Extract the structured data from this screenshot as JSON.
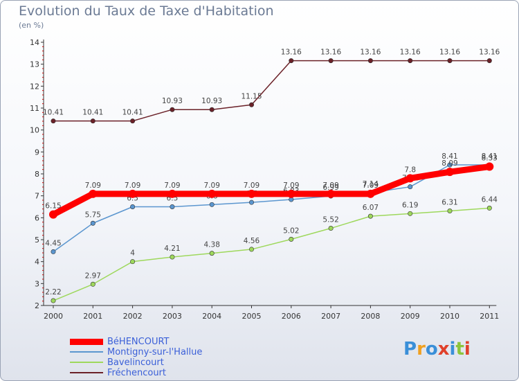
{
  "title": "Evolution du Taux de Taxe d'Habitation",
  "unit_label": "(en %)",
  "logo": "Proxiti",
  "chart_data": {
    "type": "line",
    "x": [
      "2000",
      "2001",
      "2002",
      "2003",
      "2004",
      "2005",
      "2006",
      "2007",
      "2008",
      "2009",
      "2010",
      "2011"
    ],
    "ylim": [
      2,
      14
    ],
    "yticks": [
      2,
      3,
      4,
      5,
      6,
      7,
      8,
      9,
      10,
      11,
      12,
      13,
      14
    ],
    "grid": false,
    "legend_position": "bottom-left",
    "series": [
      {
        "name": "Fréchencourt",
        "color": "#6b2128",
        "values": [
          10.41,
          10.41,
          10.41,
          10.93,
          10.93,
          11.15,
          13.16,
          13.16,
          13.16,
          13.16,
          13.16,
          13.16
        ],
        "labels": [
          "10.41",
          "10.41",
          "10.41",
          "10.93",
          "10.93",
          "11.15",
          "13.16",
          "13.16",
          "13.16",
          "13.16",
          "13.16",
          "13.16"
        ]
      },
      {
        "name": "Bavelincourt",
        "color": "#9ed85c",
        "values": [
          2.22,
          2.97,
          4,
          4.21,
          4.38,
          4.56,
          5.02,
          5.52,
          6.07,
          6.19,
          6.31,
          6.44
        ],
        "labels": [
          "2.22",
          "2.97",
          "4",
          "4.21",
          "4.38",
          "4.56",
          "5.02",
          "5.52",
          "6.07",
          "6.19",
          "6.31",
          "6.44"
        ]
      },
      {
        "name": "Montigny-sur-l'Hallue",
        "color": "#5b96cf",
        "values": [
          4.45,
          5.75,
          6.5,
          6.5,
          6.6,
          6.7,
          6.83,
          6.99,
          7.14,
          7.41,
          8.41,
          8.41
        ],
        "labels": [
          "4.45",
          "5.75",
          "6.5",
          "6.5",
          "6.6",
          "6.7",
          "6.83",
          "6.99",
          "7.14",
          "7.41",
          "8.41",
          "8.41"
        ]
      },
      {
        "name": "BéHENCOURT",
        "color": "#ff0000",
        "values": [
          6.15,
          7.09,
          7.09,
          7.09,
          7.09,
          7.09,
          7.09,
          7.09,
          7.09,
          7.8,
          8.09,
          8.33
        ],
        "labels": [
          "6.15",
          "7.09",
          "7.09",
          "7.09",
          "7.09",
          "7.09",
          "7.09",
          "7.09",
          "7.09",
          "7.8",
          "8.09",
          "8.33"
        ]
      }
    ]
  },
  "legend_items": [
    {
      "label": "BéHENCOURT"
    },
    {
      "label": "Montigny-sur-l'Hallue"
    },
    {
      "label": "Bavelincourt"
    },
    {
      "label": "Fréchencourt"
    }
  ]
}
